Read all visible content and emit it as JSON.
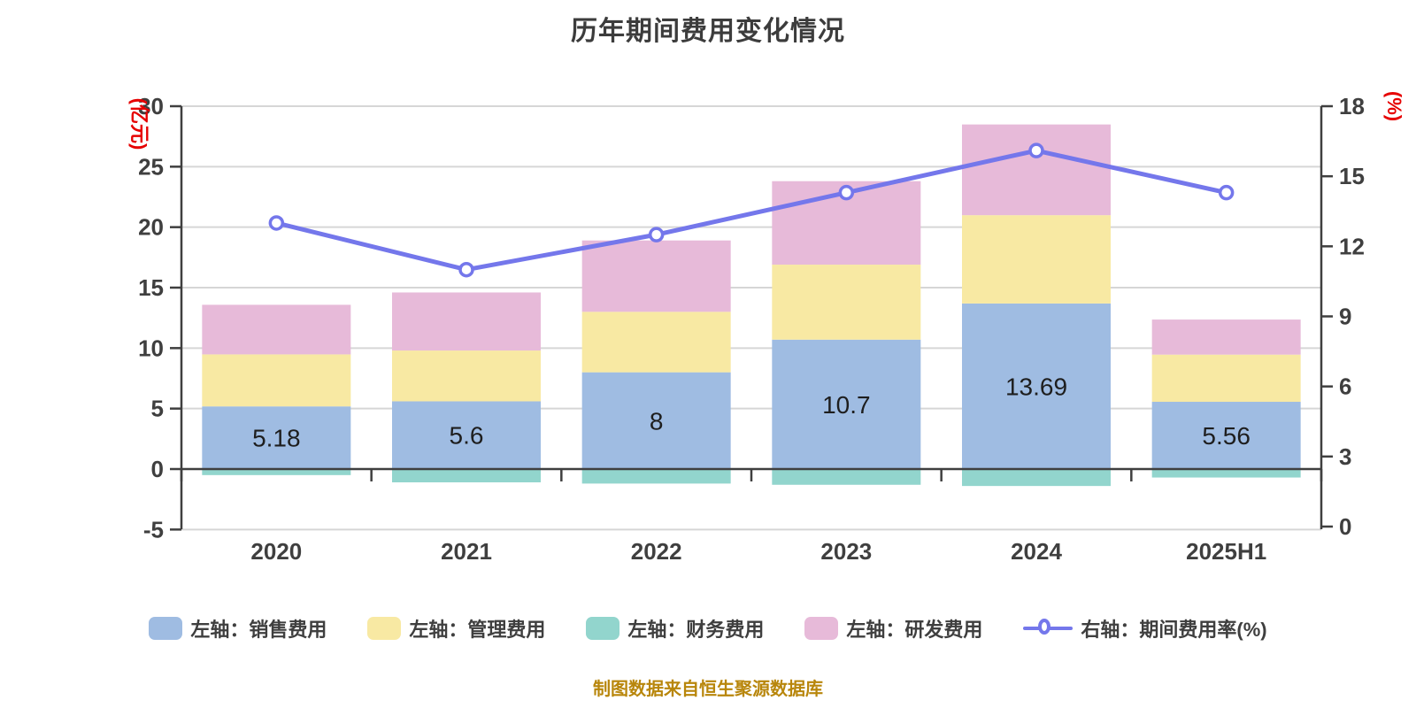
{
  "title": "历年期间费用变化情况",
  "footer": "制图数据来自恒生聚源数据库",
  "left_axis": {
    "unit": "(亿元)",
    "ticks": [
      30,
      25,
      20,
      15,
      10,
      5,
      0,
      -5
    ],
    "min": -5,
    "max": 30
  },
  "right_axis": {
    "unit": "(%)",
    "ticks": [
      18,
      15,
      12,
      9,
      6,
      3,
      0
    ],
    "min": 0,
    "max": 18
  },
  "colors": {
    "sales": "#9fbce2",
    "admin": "#f8e9a3",
    "finance": "#92d5cd",
    "rd": "#e7bad9",
    "line": "#7477eb",
    "grid": "#d6d6d6",
    "axis": "#3f3f3f",
    "tick_label": "#3f3f3f",
    "bar_label": "#1e1e1e",
    "unit_label": "#e60000",
    "title": "#3c3c3c",
    "footer": "#b8860b",
    "background": "#ffffff"
  },
  "legend": {
    "items": [
      {
        "label": "左轴：销售费用",
        "swatch": "sales",
        "kind": "bar"
      },
      {
        "label": "左轴：管理费用",
        "swatch": "admin",
        "kind": "bar"
      },
      {
        "label": "左轴：财务费用",
        "swatch": "finance",
        "kind": "bar"
      },
      {
        "label": "左轴：研发费用",
        "swatch": "rd",
        "kind": "bar"
      },
      {
        "label": "右轴：期间费用率(%)",
        "swatch": "line",
        "kind": "line"
      }
    ]
  },
  "chart_data": {
    "type": "bar",
    "subtype": "stacked-bars-with-line",
    "categories": [
      "2020",
      "2021",
      "2022",
      "2023",
      "2024",
      "2025H1"
    ],
    "series": [
      {
        "name": "左轴：销售费用",
        "type": "bar",
        "axis": "left",
        "color_key": "sales",
        "values": [
          5.18,
          5.6,
          8,
          10.7,
          13.69,
          5.56
        ],
        "labels": [
          "5.18",
          "5.6",
          "8",
          "10.7",
          "13.69",
          "5.56"
        ]
      },
      {
        "name": "左轴：管理费用",
        "type": "bar",
        "axis": "left",
        "color_key": "admin",
        "values": [
          4.3,
          4.2,
          5.0,
          6.2,
          7.3,
          3.9
        ]
      },
      {
        "name": "左轴：财务费用",
        "type": "bar",
        "axis": "left",
        "color_key": "finance",
        "values": [
          -0.5,
          -1.1,
          -1.2,
          -1.3,
          -1.4,
          -0.7
        ]
      },
      {
        "name": "左轴：研发费用",
        "type": "bar",
        "axis": "left",
        "color_key": "rd",
        "values": [
          4.1,
          4.8,
          5.9,
          6.9,
          7.5,
          2.9
        ]
      },
      {
        "name": "右轴：期间费用率(%)",
        "type": "line",
        "axis": "right",
        "color_key": "line",
        "values": [
          13.0,
          11.0,
          12.5,
          14.3,
          16.1,
          14.3
        ]
      }
    ],
    "left_ylim": [
      -5,
      30
    ],
    "right_ylim": [
      0,
      18
    ],
    "grid": true,
    "legend_position": "bottom",
    "title": "历年期间费用变化情况"
  }
}
